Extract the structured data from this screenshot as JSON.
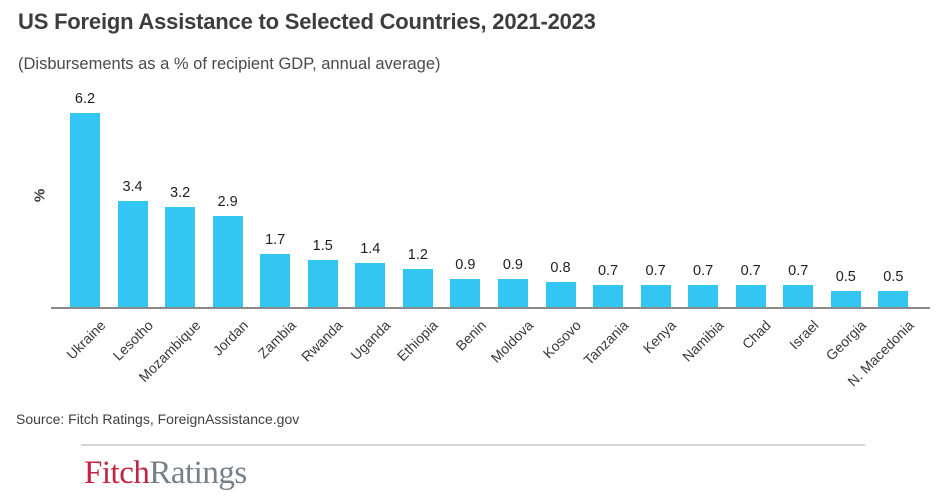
{
  "chart_data": {
    "type": "bar",
    "title": "US Foreign Assistance to Selected Countries, 2021-2023",
    "subtitle": "(Disbursements as a % of recipient GDP, annual average)",
    "categories": [
      "Ukraine",
      "Lesotho",
      "Mozambique",
      "Jordan",
      "Zambia",
      "Rwanda",
      "Uganda",
      "Ethiopia",
      "Benin",
      "Moldova",
      "Kosovo",
      "Tanzania",
      "Kenya",
      "Namibia",
      "Chad",
      "Israel",
      "Georgia",
      "N. Macedonia"
    ],
    "values": [
      6.2,
      3.4,
      3.2,
      2.9,
      1.7,
      1.5,
      1.4,
      1.2,
      0.9,
      0.9,
      0.8,
      0.7,
      0.7,
      0.7,
      0.7,
      0.7,
      0.5,
      0.5
    ],
    "value_labels": [
      "6.2",
      "3.4",
      "3.2",
      "2.9",
      "1.7",
      "1.5",
      "1.4",
      "1.2",
      "0.9",
      "0.9",
      "0.8",
      "0.7",
      "0.7",
      "0.7",
      "0.7",
      "0.7",
      "0.5",
      "0.5"
    ],
    "xlabel": "",
    "ylabel": "%",
    "ylim": [
      0,
      6.6
    ],
    "grid": false,
    "legend": false,
    "bar_color": "#33C6F2",
    "axis_color": "#8a8a8a",
    "tick_label_rotation_deg": 45
  },
  "footer": {
    "source": "Source: Fitch Ratings, ForeignAssistance.gov",
    "logo_fitch": "Fitch",
    "logo_ratings": "Ratings",
    "logo_fitch_color": "#C22544",
    "logo_ratings_color": "#75808A"
  }
}
